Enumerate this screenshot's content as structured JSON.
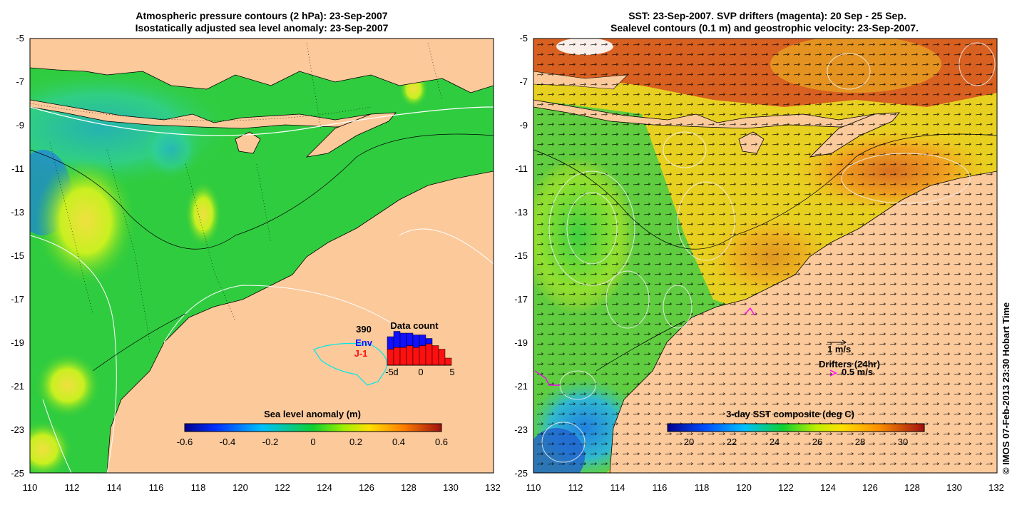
{
  "left_map": {
    "title_line1": "Atmospheric pressure contours (2 hPa): 23-Sep-2007",
    "title_line2": "Isostatically adjusted sea level anomaly: 23-Sep-2007",
    "x_ticks": [
      "110",
      "112",
      "114",
      "116",
      "118",
      "120",
      "122",
      "124",
      "126",
      "128",
      "130",
      "132"
    ],
    "y_ticks": [
      "-5",
      "-7",
      "-9",
      "-11",
      "-13",
      "-15",
      "-17",
      "-19",
      "-21",
      "-23",
      "-25"
    ],
    "colorbar": {
      "label": "Sea level anomaly (m)",
      "ticks": [
        "-0.6",
        "-0.4",
        "-0.2",
        "0",
        "0.2",
        "0.4",
        "0.6"
      ],
      "range": [
        -0.6,
        0.6
      ]
    },
    "data_count": {
      "title": "Data count",
      "total": "390",
      "series_env": "Env",
      "series_j1": "J-1",
      "env_color": "#1010ff",
      "j1_color": "#ff1010",
      "x_ticks": [
        "-5",
        "d",
        "0",
        "5"
      ],
      "j1_values": [
        0.45,
        0.5,
        0.5,
        0.55,
        0.5,
        0.55,
        0.6,
        0.55,
        0.45,
        0.2
      ],
      "env_values": [
        0.35,
        0.45,
        0.4,
        0.35,
        0.35,
        0.3,
        0.15,
        0.0,
        0.0,
        0.0
      ]
    }
  },
  "right_map": {
    "title_line1": "SST: 23-Sep-2007. SVP drifters (magenta): 20 Sep - 25 Sep.",
    "title_line2": "Sealevel contours (0.1 m) and geostrophic velocity: 23-Sep-2007.",
    "x_ticks": [
      "110",
      "112",
      "114",
      "116",
      "118",
      "120",
      "122",
      "124",
      "126",
      "128",
      "130",
      "132"
    ],
    "y_ticks": [
      "-5",
      "-7",
      "-9",
      "-11",
      "-13",
      "-15",
      "-17",
      "-19",
      "-21",
      "-23",
      "-25"
    ],
    "colorbar": {
      "label": "3-day SST composite (deg C)",
      "ticks": [
        "20",
        "22",
        "24",
        "26",
        "28",
        "30"
      ],
      "range": [
        19,
        31
      ]
    },
    "legend": {
      "velocity_label": "1 m/s",
      "drifters_label": "Drifters (24hr)",
      "drifters_speed": "0.5 m/s",
      "drifter_color": "#ff00ff"
    }
  },
  "credit": "© IMOS 07-Feb-2013 23:30 Hobart Time",
  "colors": {
    "land": "#fcc99b",
    "ocean_green": "#22cc33",
    "frame": "#000000"
  }
}
